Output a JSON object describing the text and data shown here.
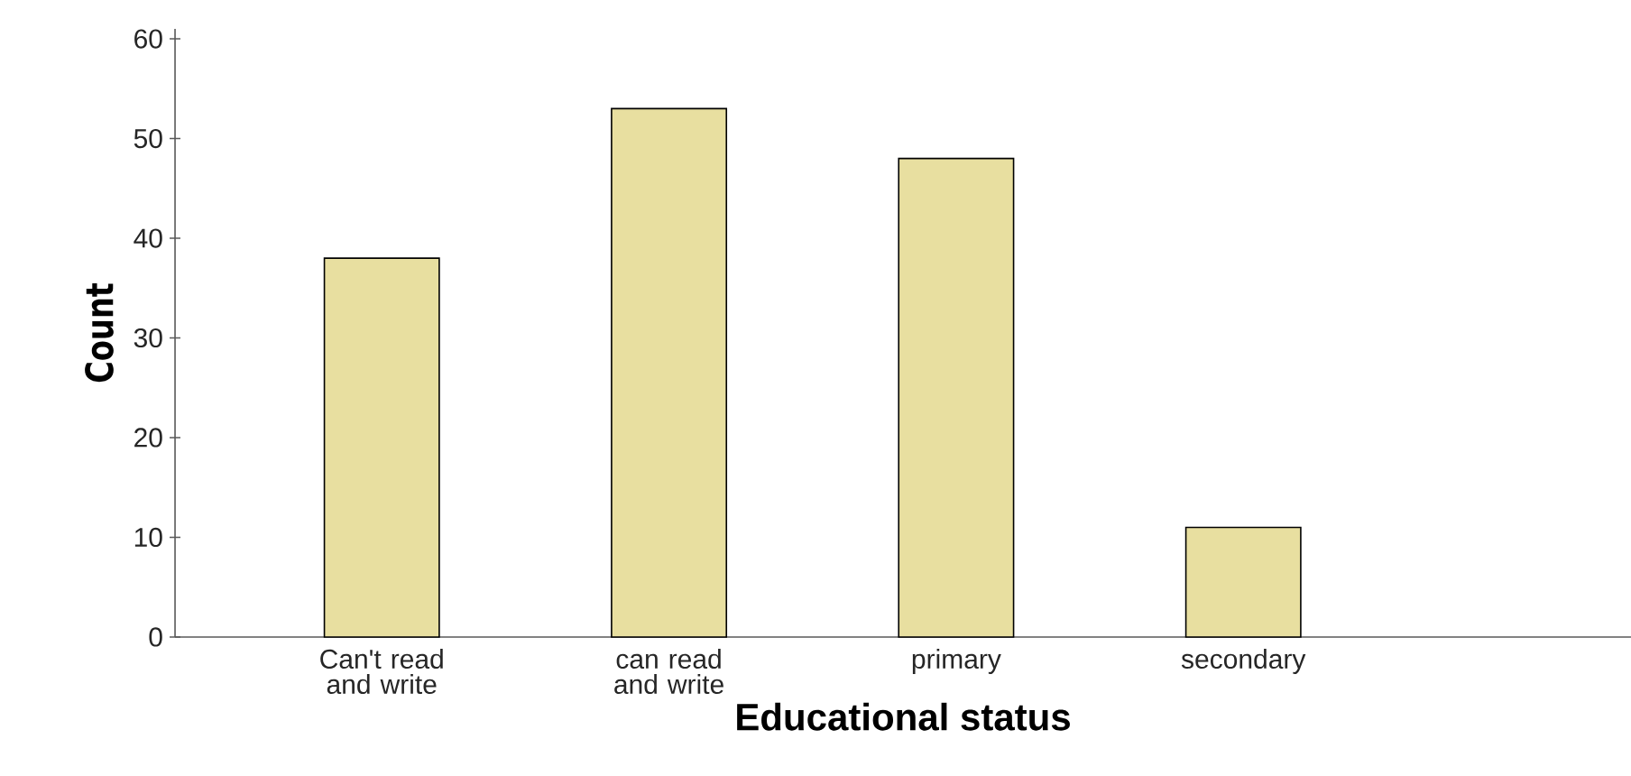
{
  "chart_data": {
    "type": "bar",
    "xlabel": "Educational status",
    "ylabel": "Count",
    "categories": [
      "Can't read and write",
      "can read and write",
      "primary",
      "secondary"
    ],
    "values": [
      38,
      53,
      48,
      11
    ],
    "color": "#e8dfa0",
    "ylim": [
      0,
      61
    ],
    "yticks": [
      0,
      10,
      20,
      30,
      40,
      50,
      60
    ],
    "grid": false
  }
}
